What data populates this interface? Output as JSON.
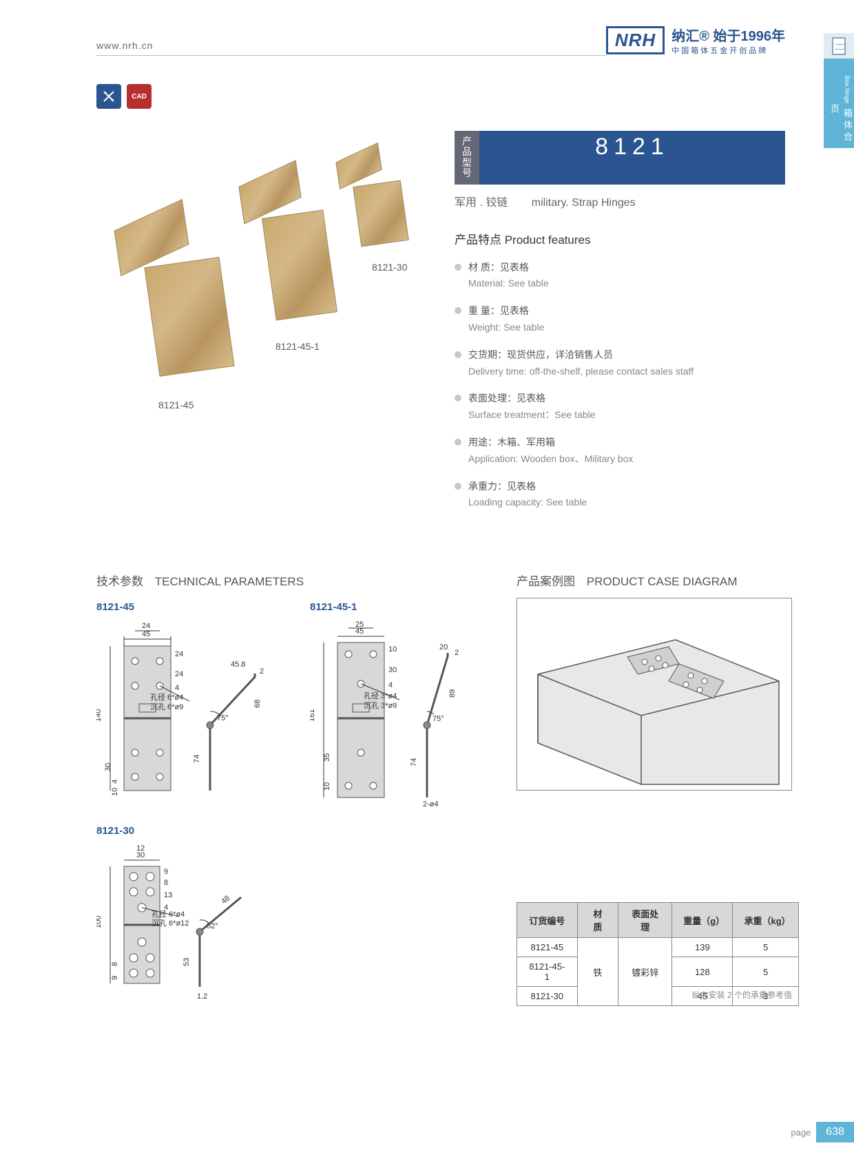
{
  "header": {
    "url": "www.nrh.cn",
    "logo_text": "NRH",
    "brand_line1": "纳汇® 始于1996年",
    "brand_line2": "中国箱体五金开创品牌"
  },
  "side_tab": {
    "cn": "箱体合页",
    "en": "Box hinge"
  },
  "tool_icons": {
    "icon1": "✕",
    "icon2": "CAD"
  },
  "product": {
    "model_label": "产品型号",
    "model_number": "8121",
    "subtitle_cn": "军用 . 铰链",
    "subtitle_en": "military. Strap Hinges",
    "photo_labels": {
      "a": "8121-45",
      "b": "8121-45-1",
      "c": "8121-30"
    }
  },
  "features": {
    "title": "产品特点  Product features",
    "items": [
      {
        "cn": "材 质：见表格",
        "en": "Material: See table"
      },
      {
        "cn": "重 量：见表格",
        "en": "Weight: See table"
      },
      {
        "cn": "交货期：现货供应，详洽销售人员",
        "en": "Delivery time: off-the-shelf, please contact sales staff"
      },
      {
        "cn": "表面处理：见表格",
        "en": "Surface treatment：See table"
      },
      {
        "cn": "用途：木箱、军用箱",
        "en": "Application: Wooden box、Military box"
      },
      {
        "cn": "承重力：见表格",
        "en": "Loading capacity: See table"
      }
    ]
  },
  "tech": {
    "title_cn": "技术参数",
    "title_en": "TECHNICAL PARAMETERS",
    "case_title_cn": "产品案例图",
    "case_title_en": "PRODUCT CASE DIAGRAM",
    "diagrams": [
      {
        "label": "8121-45",
        "dims": {
          "w": "45",
          "w_inner": "24",
          "h": "140",
          "top_gap": "24",
          "mid1": "24",
          "mid2": "4",
          "hole_note1": "孔径 6*ø4",
          "hole_note2": "沉孔 6*ø9",
          "bottom1": "30",
          "bottom2": "4",
          "bottom3": "10",
          "side_len": "45.8",
          "side_h": "68",
          "side_base": "74",
          "angle": "75°",
          "thick": "2"
        }
      },
      {
        "label": "8121-45-1",
        "dims": {
          "w": "45",
          "w_inner": "25",
          "h": "161",
          "top_gap": "10",
          "mid1": "30",
          "mid2": "4",
          "hole_note1": "孔径 3*ø4",
          "hole_note2": "沉孔 3*ø9",
          "bottom1": "35",
          "bottom2": "10",
          "side_len": "20",
          "side_h": "89",
          "side_base": "74",
          "angle": "75°",
          "thick": "2",
          "bottom_hole": "2-ø4"
        }
      },
      {
        "label": "8121-30",
        "dims": {
          "w": "30",
          "w_inner": "12",
          "h": "100",
          "top_gap": "9",
          "mid1": "8",
          "mid2": "13",
          "mid3": "4",
          "hole_note1": "孔径 6*ø4",
          "hole_note2": "沉孔 6*ø12",
          "bottom1": "8",
          "bottom2": "9",
          "side_len": "48",
          "side_base": "53",
          "angle": "52°",
          "thick": "1.2"
        }
      }
    ]
  },
  "spec_table": {
    "headers": [
      "订货编号",
      "材 质",
      "表面处理",
      "重量（g）",
      "承重（kg）"
    ],
    "material": "铁",
    "surface": "镀彩锌",
    "rows": [
      {
        "code": "8121-45",
        "weight": "139",
        "load": "5"
      },
      {
        "code": "8121-45-1",
        "weight": "128",
        "load": "5"
      },
      {
        "code": "8121-30",
        "weight": "45",
        "load": "3"
      }
    ],
    "note": "纵向安装 2 个的承重参考值"
  },
  "footer": {
    "page_label": "page",
    "page_num": "638"
  },
  "colors": {
    "brand_blue": "#2a5590",
    "accent_cyan": "#5fb4d8",
    "grey_bullet": "#c8c8c8",
    "diagram_fill": "#d0d0d0",
    "diagram_stroke": "#555"
  }
}
